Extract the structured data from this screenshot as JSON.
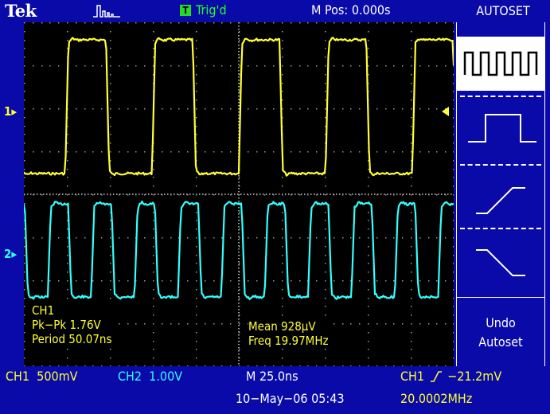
{
  "header": {
    "brand": "Tek",
    "trigger_badge": "T",
    "trigger_status": "Trig'd",
    "horizontal_position": "M Pos: 0.000s"
  },
  "menu": {
    "title": "AUTOSET",
    "options": [
      {
        "icon": "square-wave-icon",
        "selected": true
      },
      {
        "icon": "single-pulse-icon",
        "selected": false
      },
      {
        "icon": "rising-edge-icon",
        "selected": false
      },
      {
        "icon": "falling-edge-icon",
        "selected": false
      }
    ],
    "undo_label": "Undo Autoset"
  },
  "channels": {
    "ch1_marker": "1",
    "ch2_marker": "2",
    "ch1_color": "#ffff33",
    "ch2_color": "#33ffff"
  },
  "measurements": {
    "source": "CH1",
    "pkpk": "Pk−Pk 1.76V",
    "period": "Period 50.07ns",
    "mean": "Mean 928µV",
    "freq": "Freq 19.97MHz"
  },
  "status_bar": {
    "ch1_scale": "CH1  500mV",
    "ch2_scale": "CH2  1.00V",
    "timebase": "M 25.0ns",
    "trigger_source": "CH1",
    "trigger_level": "−21.2mV",
    "date_time": "10−May−06 05:43",
    "trigger_frequency": "20.0002MHz"
  }
}
